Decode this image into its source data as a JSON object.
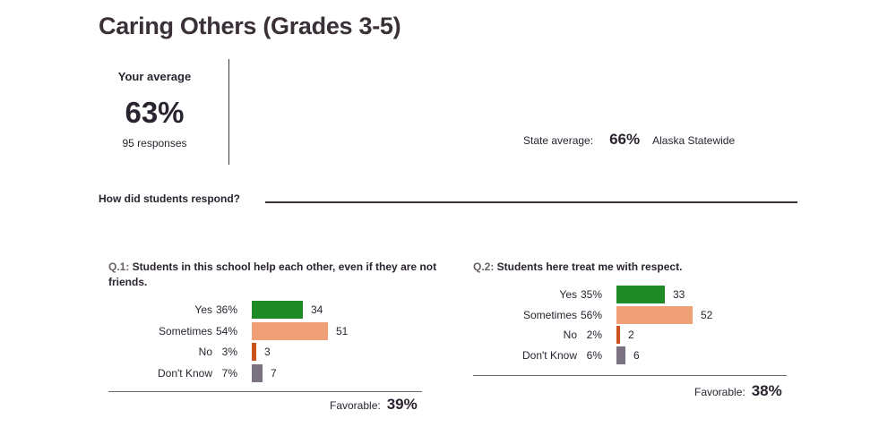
{
  "page": {
    "title": "Caring Others (Grades 3-5)",
    "your_average_label": "Your average",
    "your_average_value": "63%",
    "responses": "95 responses",
    "state_label": "State average:",
    "state_value": "66%",
    "state_name": "Alaska Statewide",
    "respond_heading": "How did students respond?"
  },
  "colors": {
    "yes": "#1e8a28",
    "sometimes": "#f0a077",
    "no": "#c9531a",
    "dont_know": "#7a7280"
  },
  "questions": [
    {
      "num": "Q.1:",
      "text": " Students in this school help each other, even if they are not friends.",
      "favorable_label": "Favorable:",
      "favorable_value": "39%",
      "rows": [
        {
          "label": "Yes",
          "pct": "36%",
          "count": "34"
        },
        {
          "label": "Sometimes",
          "pct": "54%",
          "count": "51"
        },
        {
          "label": "No",
          "pct": "3%",
          "count": "3"
        },
        {
          "label": "Don't Know",
          "pct": "7%",
          "count": "7"
        }
      ]
    },
    {
      "num": "Q.2:",
      "text": " Students here treat me with respect.",
      "favorable_label": "Favorable:",
      "favorable_value": "38%",
      "rows": [
        {
          "label": "Yes",
          "pct": "35%",
          "count": "33"
        },
        {
          "label": "Sometimes",
          "pct": "56%",
          "count": "52"
        },
        {
          "label": "No",
          "pct": "2%",
          "count": "2"
        },
        {
          "label": "Don't Know",
          "pct": "6%",
          "count": "6"
        }
      ]
    }
  ],
  "chart_data": [
    {
      "type": "bar",
      "title": "Q.1: Students in this school help each other, even if they are not friends.",
      "categories": [
        "Yes",
        "Sometimes",
        "No",
        "Don't Know"
      ],
      "values": [
        34,
        51,
        3,
        7
      ],
      "percent_labels": [
        "36%",
        "54%",
        "3%",
        "7%"
      ],
      "orientation": "horizontal"
    },
    {
      "type": "bar",
      "title": "Q.2: Students here treat me with respect.",
      "categories": [
        "Yes",
        "Sometimes",
        "No",
        "Don't Know"
      ],
      "values": [
        33,
        52,
        2,
        6
      ],
      "percent_labels": [
        "35%",
        "56%",
        "2%",
        "6%"
      ],
      "orientation": "horizontal"
    }
  ]
}
